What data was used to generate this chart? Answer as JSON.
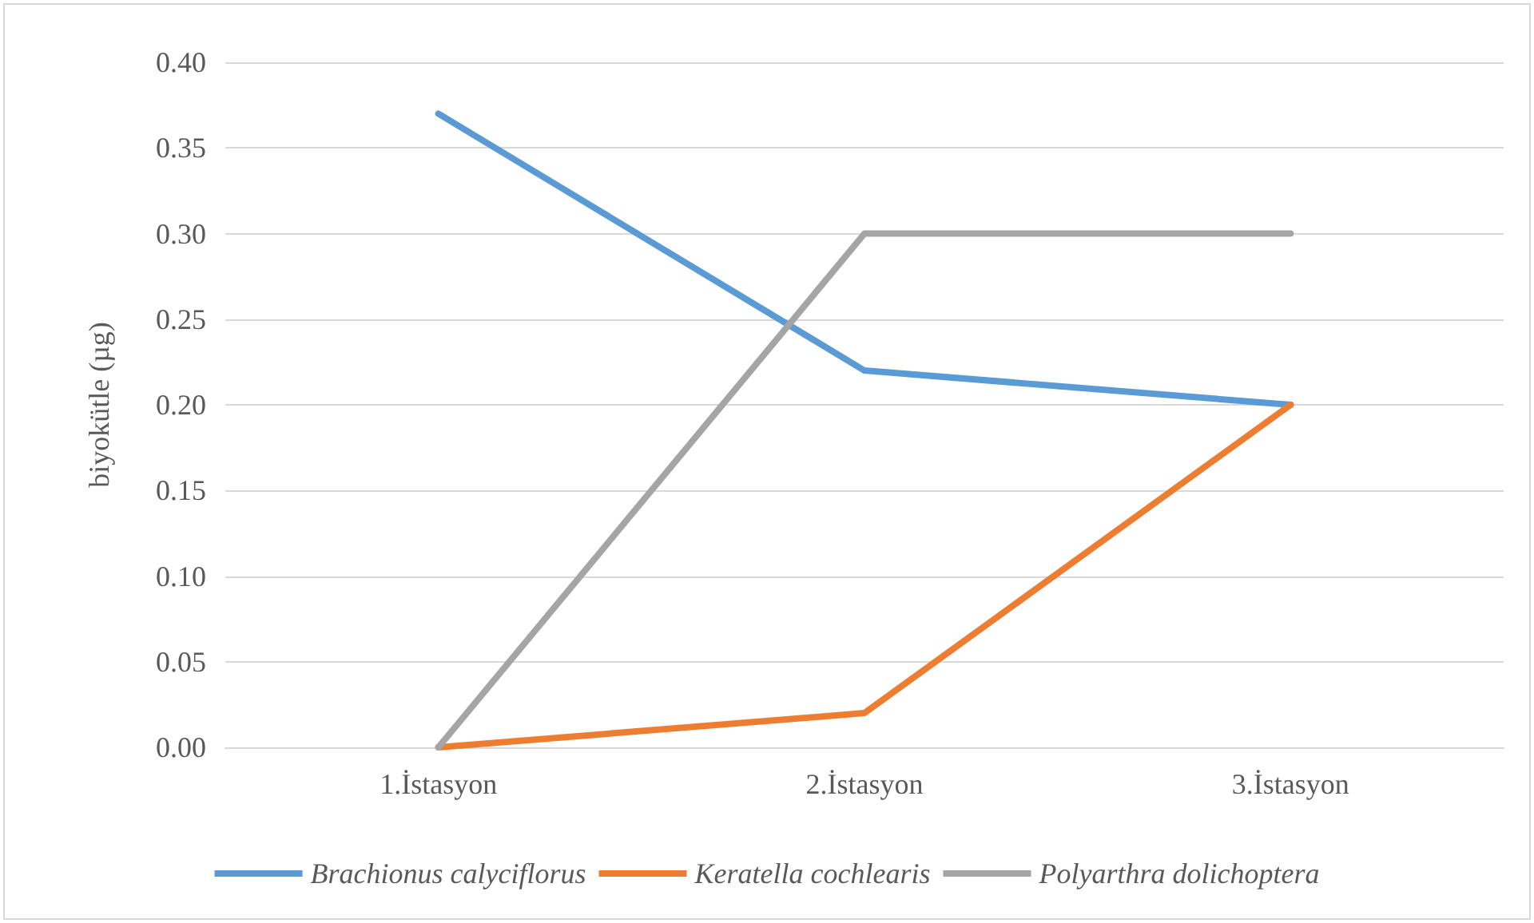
{
  "chart_data": {
    "type": "line",
    "ylabel": "biyokütle (µg)",
    "categories": [
      "1.İstasyon",
      "2.İstasyon",
      "3.İstasyon"
    ],
    "series": [
      {
        "name": "Brachionus calyciflorus",
        "color": "#5b9bd5",
        "values": [
          0.37,
          0.22,
          0.2
        ]
      },
      {
        "name": "Keratella cochlearis",
        "color": "#ed7d31",
        "values": [
          0,
          0.02,
          0.2
        ]
      },
      {
        "name": "Polyarthra dolichoptera",
        "color": "#a5a5a5",
        "values": [
          0,
          0.3,
          0.3
        ]
      }
    ],
    "ylim": [
      0,
      0.4
    ],
    "yticks": [
      {
        "value": 0,
        "label": "0.00"
      },
      {
        "value": 0.05,
        "label": "0.05"
      },
      {
        "value": 0.1,
        "label": "0.10"
      },
      {
        "value": 0.15,
        "label": "0.15"
      },
      {
        "value": 0.2,
        "label": "0.20"
      },
      {
        "value": 0.25,
        "label": "0.25"
      },
      {
        "value": 0.3,
        "label": "0.30"
      },
      {
        "value": 0.35,
        "label": "0.35"
      },
      {
        "value": 0.4,
        "label": "0.40"
      }
    ],
    "grid": "y",
    "legend": "bottom",
    "marker": "none",
    "line_style": "solid"
  }
}
